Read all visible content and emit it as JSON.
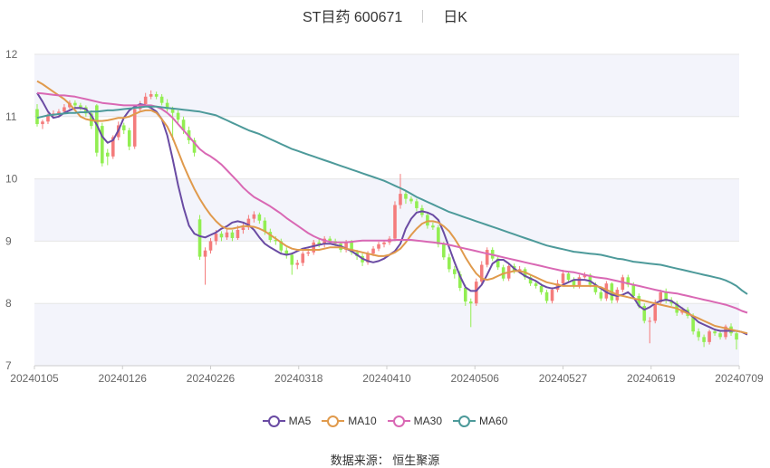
{
  "header": {
    "stock": "ST目药 600671",
    "period": "日K"
  },
  "source": "数据来源： 恒生聚源",
  "chart_data": {
    "type": "candlestick",
    "x_ticks": [
      "20240105",
      "20240126",
      "20240226",
      "20240318",
      "20240410",
      "20240506",
      "20240527",
      "20240619",
      "20240709"
    ],
    "y_ticks": [
      "7",
      "8",
      "9",
      "10",
      "11",
      "12"
    ],
    "ylim": [
      7,
      12
    ],
    "grid": true,
    "legend_position": "bottom",
    "colors": {
      "up": "#f47c7c",
      "down": "#92ee52",
      "MA5": "#6a4ba3",
      "MA10": "#e09a4c",
      "MA30": "#d968b4",
      "MA60": "#4d9a9a",
      "band": "#f3f4fb",
      "grid": "#e6e6e6"
    },
    "candles": {
      "open": [
        11.12,
        10.88,
        10.92,
        11.02,
        11.05,
        11.08,
        11.15,
        11.22,
        11.18,
        11.15,
        11.05,
        11.18,
        10.85,
        10.42,
        10.36,
        10.67,
        10.86,
        10.78,
        10.52,
        11.12,
        11.2,
        11.32,
        11.36,
        11.32,
        11.22,
        11.12,
        11.06,
        10.95,
        10.78,
        10.62,
        9.35,
        8.75,
        8.85,
        9.0,
        9.12,
        9.06,
        9.14,
        9.05,
        9.18,
        9.22,
        9.36,
        9.43,
        9.33,
        9.15,
        9.02,
        9.0,
        8.85,
        8.78,
        8.62,
        8.65,
        8.8,
        8.82,
        8.98,
        8.95,
        9.04,
        9.0,
        8.96,
        8.86,
        8.98,
        8.82,
        8.76,
        8.66,
        8.8,
        8.88,
        8.95,
        8.98,
        9.04,
        9.58,
        9.76,
        9.68,
        9.64,
        9.53,
        9.42,
        9.25,
        9.22,
        8.95,
        8.74,
        8.55,
        8.47,
        8.25,
        8.03,
        8.0,
        8.35,
        8.62,
        8.86,
        8.72,
        8.58,
        8.4,
        8.6,
        8.52,
        8.55,
        8.42,
        8.32,
        8.28,
        8.18,
        8.04,
        8.22,
        8.32,
        8.48,
        8.38,
        8.28,
        8.42,
        8.46,
        8.3,
        8.18,
        8.08,
        8.32,
        8.05,
        8.22,
        8.42,
        8.3,
        8.12,
        7.96,
        7.72,
        7.72,
        8.02,
        8.18,
        8.05,
        8.0,
        7.85,
        7.9,
        7.8,
        7.55,
        7.46,
        7.38,
        7.55,
        7.52,
        7.46,
        7.63,
        7.52
      ],
      "close": [
        10.88,
        10.92,
        11.02,
        11.05,
        11.08,
        11.15,
        11.22,
        11.18,
        11.15,
        11.05,
        10.85,
        10.42,
        10.25,
        10.36,
        10.67,
        10.86,
        10.78,
        10.52,
        11.12,
        11.2,
        11.32,
        11.36,
        11.32,
        11.22,
        11.12,
        11.06,
        10.95,
        10.78,
        10.62,
        10.42,
        8.75,
        8.85,
        9.0,
        9.12,
        9.06,
        9.14,
        9.05,
        9.18,
        9.22,
        9.36,
        9.43,
        9.33,
        9.15,
        9.02,
        9.0,
        8.85,
        8.78,
        8.62,
        8.65,
        8.8,
        8.82,
        8.98,
        8.95,
        9.04,
        9.0,
        8.96,
        8.86,
        8.98,
        8.82,
        8.76,
        8.66,
        8.8,
        8.88,
        8.95,
        8.98,
        9.04,
        9.58,
        9.76,
        9.68,
        9.64,
        9.53,
        9.42,
        9.25,
        9.22,
        8.95,
        8.74,
        8.55,
        8.47,
        8.25,
        8.03,
        8.0,
        8.35,
        8.62,
        8.86,
        8.72,
        8.58,
        8.4,
        8.6,
        8.52,
        8.55,
        8.42,
        8.32,
        8.28,
        8.18,
        8.04,
        8.22,
        8.32,
        8.48,
        8.38,
        8.28,
        8.42,
        8.46,
        8.3,
        8.18,
        8.08,
        8.32,
        8.05,
        8.22,
        8.42,
        8.3,
        8.12,
        7.96,
        7.72,
        7.72,
        8.02,
        8.18,
        8.05,
        8.0,
        7.85,
        7.9,
        7.8,
        7.55,
        7.46,
        7.38,
        7.55,
        7.52,
        7.46,
        7.63,
        7.52,
        7.42
      ],
      "high": [
        11.2,
        10.95,
        11.05,
        11.1,
        11.12,
        11.2,
        11.26,
        11.26,
        11.22,
        11.18,
        11.1,
        11.2,
        10.9,
        10.48,
        10.7,
        10.92,
        10.9,
        10.82,
        11.15,
        11.25,
        11.38,
        11.42,
        11.4,
        11.36,
        11.28,
        11.16,
        11.1,
        11.0,
        10.84,
        10.66,
        9.42,
        8.9,
        9.05,
        9.18,
        9.16,
        9.2,
        9.18,
        9.25,
        9.3,
        9.42,
        9.48,
        9.46,
        9.38,
        9.2,
        9.08,
        9.04,
        8.9,
        8.82,
        8.7,
        8.84,
        8.88,
        9.02,
        9.03,
        9.08,
        9.08,
        9.04,
        8.98,
        9.02,
        9.02,
        8.86,
        8.8,
        8.84,
        8.92,
        8.99,
        9.02,
        9.08,
        9.64,
        10.08,
        9.8,
        9.72,
        9.68,
        9.58,
        9.46,
        9.3,
        9.26,
        8.99,
        8.8,
        8.6,
        8.52,
        8.3,
        8.08,
        8.4,
        8.68,
        8.9,
        8.9,
        8.76,
        8.62,
        8.64,
        8.64,
        8.6,
        8.58,
        8.46,
        8.36,
        8.32,
        8.22,
        8.26,
        8.38,
        8.54,
        8.52,
        8.42,
        8.46,
        8.5,
        8.48,
        8.34,
        8.22,
        8.36,
        8.34,
        8.26,
        8.46,
        8.46,
        8.34,
        8.16,
        8.0,
        7.78,
        8.06,
        8.22,
        8.24,
        8.1,
        8.04,
        7.94,
        7.94,
        7.84,
        7.6,
        7.5,
        7.58,
        7.6,
        7.56,
        7.66,
        7.68,
        7.56
      ],
      "low": [
        10.84,
        10.8,
        10.88,
        10.98,
        11.0,
        11.04,
        11.12,
        11.14,
        11.1,
        11.0,
        10.8,
        10.36,
        10.2,
        10.22,
        10.32,
        10.62,
        10.72,
        10.46,
        10.48,
        11.08,
        11.16,
        11.28,
        11.28,
        11.18,
        11.08,
        10.62,
        10.9,
        10.72,
        10.56,
        10.36,
        8.7,
        8.3,
        8.8,
        8.94,
        9.0,
        9.02,
        9.0,
        9.02,
        9.12,
        9.18,
        9.3,
        9.28,
        9.1,
        8.98,
        8.94,
        8.8,
        8.72,
        8.46,
        8.55,
        8.6,
        8.76,
        8.78,
        8.9,
        8.9,
        8.96,
        8.92,
        8.82,
        8.82,
        8.78,
        8.7,
        8.6,
        8.62,
        8.76,
        8.84,
        8.9,
        8.94,
        9.0,
        9.52,
        9.6,
        9.6,
        9.48,
        9.38,
        9.2,
        9.18,
        8.9,
        8.7,
        8.5,
        8.4,
        8.2,
        7.96,
        7.62,
        7.96,
        8.3,
        8.58,
        8.68,
        8.54,
        8.36,
        8.36,
        8.48,
        8.48,
        8.38,
        8.28,
        8.24,
        8.14,
        8.0,
        8.0,
        8.18,
        8.28,
        8.34,
        8.24,
        8.24,
        8.4,
        8.26,
        8.14,
        8.04,
        8.04,
        8.0,
        8.01,
        8.18,
        8.26,
        8.08,
        7.92,
        7.68,
        7.36,
        7.68,
        7.98,
        8.0,
        7.96,
        7.8,
        7.82,
        7.76,
        7.5,
        7.4,
        7.3,
        7.34,
        7.48,
        7.42,
        7.42,
        7.48,
        7.26
      ]
    },
    "series": [
      {
        "name": "MA5",
        "values": [
          11.38,
          11.24,
          11.08,
          10.98,
          11.0,
          11.06,
          11.1,
          11.14,
          11.14,
          11.12,
          11.02,
          10.87,
          10.68,
          10.58,
          10.62,
          10.78,
          10.98,
          11.1,
          11.16,
          11.2,
          11.18,
          11.14,
          11.08,
          10.96,
          10.7,
          10.32,
          9.9,
          9.54,
          9.25,
          9.12,
          9.08,
          9.06,
          9.1,
          9.14,
          9.2,
          9.24,
          9.3,
          9.32,
          9.3,
          9.26,
          9.18,
          9.06,
          8.96,
          8.9,
          8.85,
          8.8,
          8.78,
          8.8,
          8.84,
          8.88,
          8.9,
          8.92,
          8.94,
          8.96,
          8.96,
          8.94,
          8.92,
          8.88,
          8.84,
          8.78,
          8.72,
          8.68,
          8.66,
          8.68,
          8.72,
          8.78,
          8.84,
          8.96,
          9.2,
          9.36,
          9.46,
          9.48,
          9.46,
          9.42,
          9.34,
          9.14,
          8.9,
          8.66,
          8.44,
          8.26,
          8.2,
          8.2,
          8.3,
          8.46,
          8.64,
          8.7,
          8.7,
          8.64,
          8.56,
          8.5,
          8.44,
          8.4,
          8.36,
          8.3,
          8.26,
          8.24,
          8.26,
          8.3,
          8.34,
          8.38,
          8.38,
          8.38,
          8.36,
          8.3,
          8.24,
          8.18,
          8.14,
          8.12,
          8.14,
          8.18,
          8.1,
          7.96,
          7.9,
          7.94,
          8.0,
          8.04,
          8.06,
          8.04,
          7.98,
          7.92,
          7.86,
          7.78,
          7.7,
          7.66,
          7.62,
          7.58,
          7.56,
          7.56,
          7.56,
          7.56,
          7.54,
          7.5
        ]
      },
      {
        "name": "MA10",
        "values": [
          11.57,
          11.52,
          11.46,
          11.4,
          11.34,
          11.28,
          11.2,
          11.1,
          11.0,
          10.96,
          10.94,
          10.93,
          10.93,
          10.94,
          10.96,
          10.98,
          10.98,
          11.0,
          11.04,
          11.08,
          11.1,
          11.1,
          11.06,
          10.96,
          10.84,
          10.66,
          10.44,
          10.22,
          10.02,
          9.84,
          9.68,
          9.54,
          9.42,
          9.32,
          9.24,
          9.2,
          9.2,
          9.22,
          9.24,
          9.24,
          9.23,
          9.2,
          9.16,
          9.1,
          9.04,
          8.98,
          8.92,
          8.88,
          8.86,
          8.86,
          8.86,
          8.86,
          8.86,
          8.88,
          8.9,
          8.9,
          8.9,
          8.88,
          8.86,
          8.84,
          8.82,
          8.8,
          8.78,
          8.76,
          8.76,
          8.78,
          8.82,
          8.88,
          8.98,
          9.1,
          9.2,
          9.28,
          9.32,
          9.32,
          9.3,
          9.24,
          9.16,
          9.04,
          8.9,
          8.74,
          8.6,
          8.48,
          8.4,
          8.38,
          8.4,
          8.44,
          8.48,
          8.5,
          8.52,
          8.52,
          8.5,
          8.46,
          8.42,
          8.38,
          8.34,
          8.32,
          8.3,
          8.28,
          8.28,
          8.28,
          8.28,
          8.28,
          8.28,
          8.28,
          8.26,
          8.22,
          8.18,
          8.14,
          8.12,
          8.1,
          8.08,
          8.06,
          8.04,
          8.02,
          8.0,
          7.98,
          7.96,
          7.94,
          7.92,
          7.88,
          7.84,
          7.8,
          7.76,
          7.72,
          7.68,
          7.64,
          7.62,
          7.6,
          7.58,
          7.56,
          7.54,
          7.52
        ]
      },
      {
        "name": "MA30",
        "values": [
          11.38,
          11.37,
          11.36,
          11.35,
          11.34,
          11.34,
          11.33,
          11.32,
          11.3,
          11.28,
          11.26,
          11.24,
          11.22,
          11.21,
          11.2,
          11.19,
          11.18,
          11.18,
          11.18,
          11.18,
          11.18,
          11.18,
          11.16,
          11.12,
          11.06,
          10.98,
          10.88,
          10.78,
          10.68,
          10.58,
          10.48,
          10.41,
          10.36,
          10.3,
          10.23,
          10.14,
          10.05,
          9.96,
          9.86,
          9.78,
          9.71,
          9.66,
          9.61,
          9.56,
          9.5,
          9.44,
          9.37,
          9.31,
          9.25,
          9.19,
          9.13,
          9.08,
          9.04,
          9.01,
          8.99,
          8.98,
          8.98,
          8.98,
          8.99,
          9.0,
          9.01,
          9.01,
          9.01,
          9.01,
          9.01,
          9.01,
          9.02,
          9.02,
          9.02,
          9.02,
          9.01,
          9.0,
          8.99,
          8.98,
          8.97,
          8.96,
          8.94,
          8.92,
          8.9,
          8.88,
          8.86,
          8.84,
          8.82,
          8.8,
          8.78,
          8.76,
          8.74,
          8.72,
          8.7,
          8.68,
          8.66,
          8.64,
          8.62,
          8.6,
          8.58,
          8.56,
          8.54,
          8.52,
          8.51,
          8.5,
          8.48,
          8.46,
          8.44,
          8.42,
          8.41,
          8.4,
          8.38,
          8.36,
          8.34,
          8.32,
          8.3,
          8.28,
          8.26,
          8.24,
          8.22,
          8.2,
          8.18,
          8.17,
          8.16,
          8.14,
          8.12,
          8.1,
          8.08,
          8.06,
          8.04,
          8.02,
          8.0,
          7.98,
          7.95,
          7.92,
          7.88,
          7.85
        ]
      },
      {
        "name": "MA60",
        "values": [
          10.98,
          11.0,
          11.02,
          11.03,
          11.04,
          11.05,
          11.06,
          11.06,
          11.07,
          11.07,
          11.08,
          11.08,
          11.09,
          11.1,
          11.1,
          11.11,
          11.12,
          11.13,
          11.14,
          11.15,
          11.16,
          11.16,
          11.16,
          11.15,
          11.14,
          11.13,
          11.12,
          11.11,
          11.1,
          11.09,
          11.08,
          11.06,
          11.04,
          11.02,
          10.98,
          10.94,
          10.9,
          10.86,
          10.82,
          10.78,
          10.75,
          10.72,
          10.68,
          10.64,
          10.6,
          10.56,
          10.52,
          10.48,
          10.45,
          10.42,
          10.39,
          10.36,
          10.33,
          10.3,
          10.27,
          10.24,
          10.21,
          10.18,
          10.15,
          10.12,
          10.09,
          10.06,
          10.03,
          10.0,
          9.97,
          9.93,
          9.89,
          9.85,
          9.81,
          9.76,
          9.71,
          9.67,
          9.63,
          9.59,
          9.55,
          9.51,
          9.47,
          9.44,
          9.41,
          9.38,
          9.35,
          9.32,
          9.29,
          9.26,
          9.23,
          9.2,
          9.17,
          9.14,
          9.11,
          9.08,
          9.05,
          9.02,
          8.99,
          8.96,
          8.93,
          8.91,
          8.89,
          8.87,
          8.85,
          8.83,
          8.82,
          8.81,
          8.8,
          8.79,
          8.78,
          8.76,
          8.74,
          8.72,
          8.71,
          8.69,
          8.67,
          8.66,
          8.65,
          8.64,
          8.63,
          8.62,
          8.6,
          8.58,
          8.56,
          8.54,
          8.52,
          8.5,
          8.48,
          8.46,
          8.44,
          8.42,
          8.4,
          8.37,
          8.33,
          8.28,
          8.21,
          8.15
        ]
      }
    ]
  }
}
